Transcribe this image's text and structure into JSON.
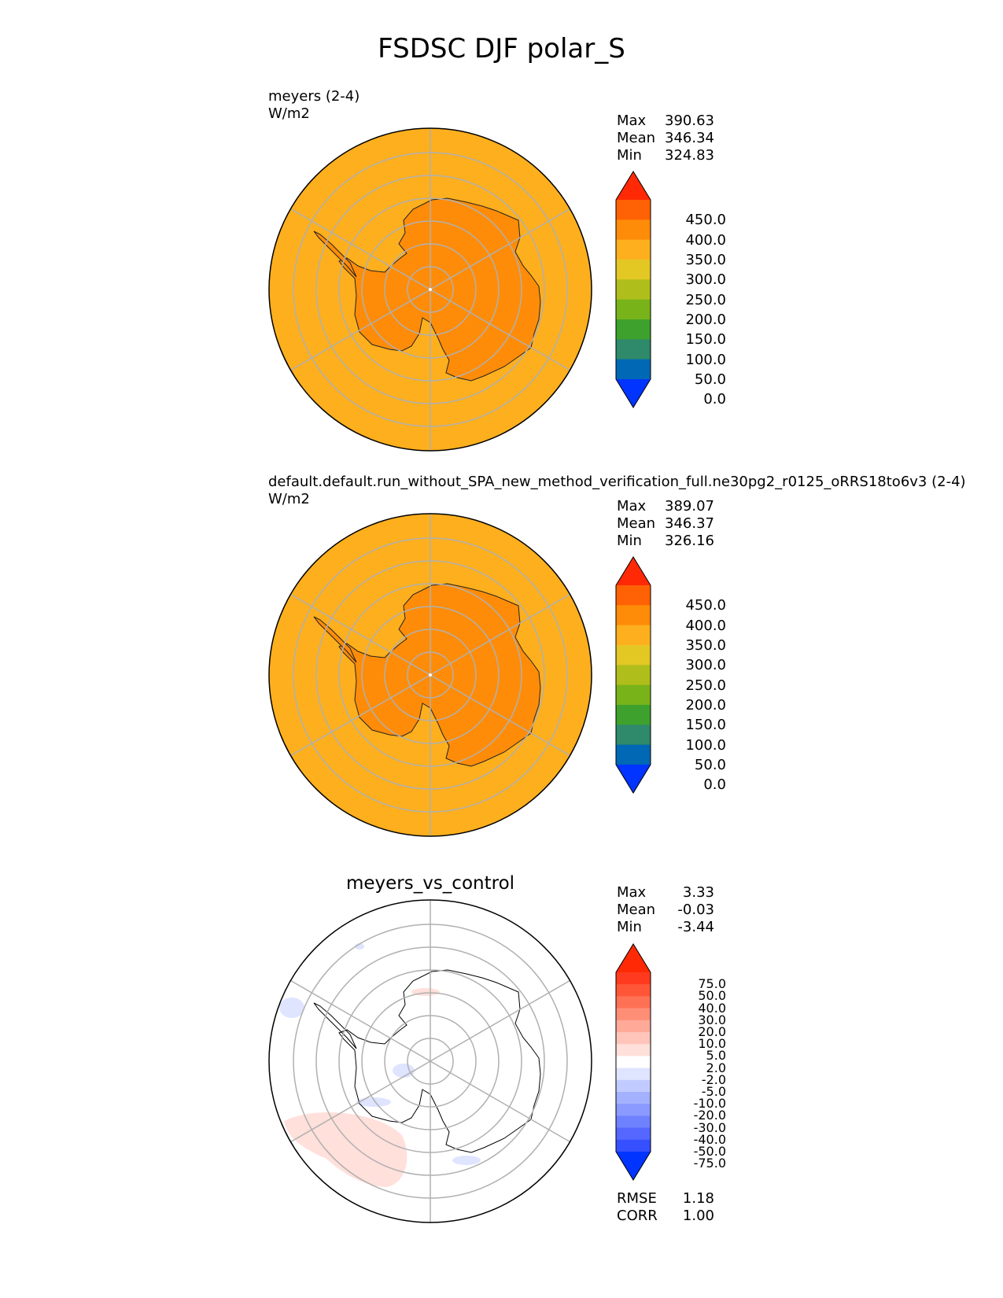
{
  "figure": {
    "title": "FSDSC DJF polar_S"
  },
  "panels": [
    {
      "id": "test",
      "name_line": "meyers (2-4)",
      "units": "W/m2",
      "stats": [
        {
          "label": "Max",
          "value": "390.63"
        },
        {
          "label": "Mean",
          "value": "346.34"
        },
        {
          "label": "Min",
          "value": "324.83"
        }
      ]
    },
    {
      "id": "reference",
      "name_line": "default.default.run_without_SPA_new_method_verification_full.ne30pg2_r0125_oRRS18to6v3 (2-4)",
      "units": "W/m2",
      "stats": [
        {
          "label": "Max",
          "value": "389.07"
        },
        {
          "label": "Mean",
          "value": "346.37"
        },
        {
          "label": "Min",
          "value": "326.16"
        }
      ]
    },
    {
      "id": "diff",
      "title": "meyers_vs_control",
      "stats": [
        {
          "label": "Max",
          "value": "3.33"
        },
        {
          "label": "Mean",
          "value": "-0.03"
        },
        {
          "label": "Min",
          "value": "-3.44"
        }
      ],
      "metrics": [
        {
          "label": "RMSE",
          "value": "1.18"
        },
        {
          "label": "CORR",
          "value": "1.00"
        }
      ]
    }
  ],
  "colorbars": {
    "main": {
      "ticks": [
        "450.0",
        "400.0",
        "350.0",
        "300.0",
        "250.0",
        "200.0",
        "150.0",
        "100.0",
        "50.0",
        "0.0"
      ],
      "colors": [
        "#ff2a05",
        "#ff6105",
        "#ff8c08",
        "#fdaf1e",
        "#e3c824",
        "#b0be1c",
        "#78b31a",
        "#3ea12d",
        "#2e8a6a",
        "#0068b4",
        "#0134ff"
      ]
    },
    "diff": {
      "ticks": [
        "75.0",
        "50.0",
        "40.0",
        "30.0",
        "20.0",
        "10.0",
        "5.0",
        "2.0",
        "-2.0",
        "-5.0",
        "-10.0",
        "-20.0",
        "-30.0",
        "-40.0",
        "-50.0",
        "-75.0"
      ],
      "colors": [
        "#ff2a05",
        "#ff3a1e",
        "#ff5637",
        "#ff7155",
        "#ff8e76",
        "#ffa999",
        "#ffc4ba",
        "#ffe0db",
        "#ffffff",
        "#dfe4ff",
        "#c2cbff",
        "#a3b1ff",
        "#8a9aff",
        "#6e81ff",
        "#5567ff",
        "#3650ff",
        "#0134ff"
      ]
    }
  },
  "chart_data": [
    {
      "type": "heatmap",
      "projection": "south-polar-stereographic",
      "variable": "FSDSC",
      "season": "DJF",
      "region": "polar_S",
      "title": "meyers (2-4)",
      "units": "W/m2",
      "stats": {
        "max": 390.63,
        "mean": 346.34,
        "min": 324.83
      },
      "levels": [
        0,
        50,
        100,
        150,
        200,
        250,
        300,
        350,
        400,
        450
      ],
      "field_summary": {
        "ocean_band": "300-350",
        "antarctica_band": "350-400"
      }
    },
    {
      "type": "heatmap",
      "projection": "south-polar-stereographic",
      "title": "default.default.run_without_SPA_new_method_verification_full.ne30pg2_r0125_oRRS18to6v3 (2-4)",
      "units": "W/m2",
      "stats": {
        "max": 389.07,
        "mean": 346.37,
        "min": 326.16
      },
      "levels": [
        0,
        50,
        100,
        150,
        200,
        250,
        300,
        350,
        400,
        450
      ],
      "field_summary": {
        "ocean_band": "300-350",
        "antarctica_band": "350-400"
      }
    },
    {
      "type": "heatmap",
      "projection": "south-polar-stereographic",
      "title": "meyers_vs_control",
      "stats": {
        "max": 3.33,
        "mean": -0.03,
        "min": -3.44
      },
      "levels": [
        -75,
        -50,
        -40,
        -30,
        -20,
        -10,
        -5,
        -2,
        2,
        5,
        10,
        20,
        30,
        40,
        50,
        75
      ],
      "metrics": {
        "rmse": 1.18,
        "corr": 1.0
      }
    }
  ]
}
